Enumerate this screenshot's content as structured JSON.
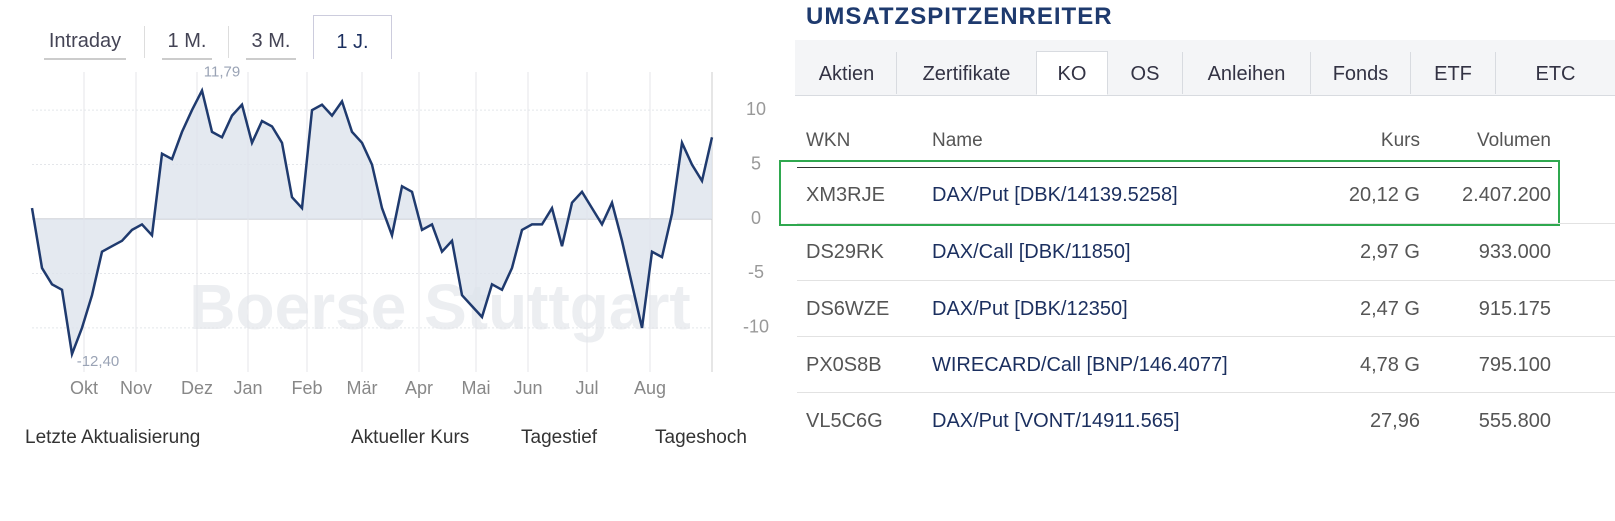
{
  "chart_tabs": {
    "items": [
      "Intraday",
      "1 M.",
      "3 M.",
      "1 J."
    ],
    "active": 3
  },
  "chart_data": {
    "type": "line",
    "color": "#1f3a6e",
    "values": [
      1,
      -4.5,
      -6,
      -6.5,
      -12.4,
      -10,
      -7,
      -3,
      -2.5,
      -2,
      -1,
      -0.5,
      -1.5,
      6,
      5.5,
      8,
      10,
      11.79,
      8,
      7.5,
      9.5,
      10.5,
      7,
      9,
      8.5,
      7,
      2,
      1,
      10,
      10.5,
      9.5,
      10.8,
      8,
      7,
      5,
      1,
      -1.5,
      3,
      2.5,
      -1,
      -0.5,
      -3,
      -2,
      -7,
      -8,
      -9,
      -6,
      -6.5,
      -4.5,
      -1,
      -0.5,
      -0.5,
      1,
      -2.5,
      1.5,
      2.5,
      1,
      -0.5,
      1.5,
      -2,
      -6,
      -10,
      -3,
      -3.5,
      0.5,
      7,
      5,
      3.5,
      7.5
    ],
    "xlim": [
      0,
      68
    ],
    "xticks": [
      {
        "value": 5.2,
        "label": "Okt"
      },
      {
        "value": 10.4,
        "label": "Nov"
      },
      {
        "value": 16.5,
        "label": "Dez"
      },
      {
        "value": 21.6,
        "label": "Jan"
      },
      {
        "value": 27.5,
        "label": "Feb"
      },
      {
        "value": 33,
        "label": "Mär"
      },
      {
        "value": 38.7,
        "label": "Apr"
      },
      {
        "value": 44.4,
        "label": "Mai"
      },
      {
        "value": 49.6,
        "label": "Jun"
      },
      {
        "value": 55.5,
        "label": "Jul"
      },
      {
        "value": 61.8,
        "label": "Aug"
      }
    ],
    "ylim": [
      -13.5,
      13.5
    ],
    "yticks": [
      10,
      5,
      0,
      -5,
      -10
    ],
    "grid": true,
    "max_label": "11,79",
    "min_label": "-12,40",
    "watermark": "Boerse Stuttgart"
  },
  "quote_labels": [
    "Letzte Aktualisierung",
    "Aktueller Kurs",
    "Tagestief",
    "Tageshoch"
  ],
  "panel": {
    "title": "UMSATZSPITZENREITER",
    "tabs": [
      "Aktien",
      "Zertifikate",
      "KO",
      "OS",
      "Anleihen",
      "Fonds",
      "ETF",
      "ETC"
    ],
    "active_tab": 2,
    "table": {
      "columns": [
        "WKN",
        "Name",
        "Kurs",
        "Volumen"
      ],
      "rows": [
        [
          "XM3RJE",
          "DAX/Put [DBK/14139.5258]",
          "20,12 G",
          "2.407.200"
        ],
        [
          "DS29RK",
          "DAX/Call [DBK/11850]",
          "2,97 G",
          "933.000"
        ],
        [
          "DS6WZE",
          "DAX/Put [DBK/12350]",
          "2,47 G",
          "915.175"
        ],
        [
          "PX0S8B",
          "WIRECARD/Call [BNP/146.4077]",
          "4,78 G",
          "795.100"
        ],
        [
          "VL5C6G",
          "DAX/Put [VONT/14911.565]",
          "27,96",
          "555.800"
        ]
      ],
      "highlighted_row": 0
    }
  }
}
